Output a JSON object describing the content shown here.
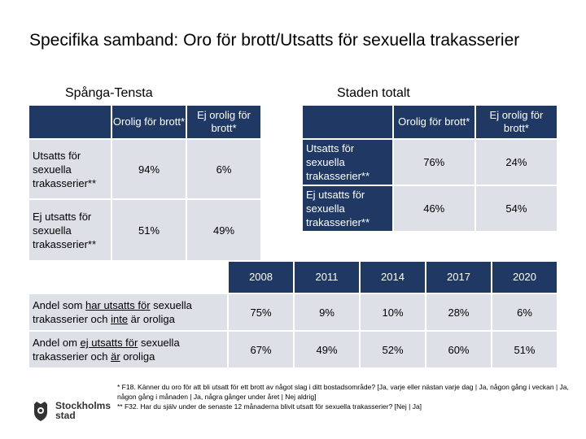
{
  "title": "Specifika samband: Oro för brott/Utsatts för sexuella trakasserier",
  "spanga": {
    "region": "Spånga-Tensta",
    "col1": "Orolig för brott*",
    "col2": "Ej orolig för brott*",
    "row1": "Utsatts för sexuella trakasserier**",
    "row2": "Ej utsatts för sexuella trakasserier**",
    "r1c1": "94%",
    "r1c2": "6%",
    "r2c1": "51%",
    "r2c2": "49%"
  },
  "staden": {
    "region": "Staden totalt",
    "col1": "Orolig för brott*",
    "col2": "Ej orolig för brott*",
    "row1": "Utsatts för sexuella trakasserier**",
    "row2": "Ej utsatts för sexuella trakasserier**",
    "r1c1": "76%",
    "r1c2": "24%",
    "r2c1": "46%",
    "r2c2": "54%"
  },
  "trend": {
    "years": [
      "2008",
      "2011",
      "2014",
      "2017",
      "2020"
    ],
    "row1_parts": [
      "Andel som ",
      "har utsatts för",
      " sexuella trakasserier och ",
      "inte",
      " är oroliga"
    ],
    "row1_values": [
      "75%",
      "9%",
      "10%",
      "28%",
      "6%"
    ],
    "row2_parts": [
      "Andel om ",
      "ej utsatts för",
      " sexuella trakasserier och ",
      "är",
      " oroliga"
    ],
    "row2_values": [
      "67%",
      "49%",
      "52%",
      "60%",
      "51%"
    ]
  },
  "footnote": {
    "line1": "* F18. Känner du oro för att bli utsatt för ett brott av något slag i ditt bostadsområde? [Ja, varje eller nästan varje dag | Ja, någon gång i veckan | Ja, någon gång i månaden | Ja, några gånger under året | Nej aldrig]",
    "line2": "** F32. Har du själv under de senaste 12 månaderna blivit utsatt för sexuella trakasserier? [Nej | Ja]"
  },
  "logo": {
    "line1": "Stockholms",
    "line2": "stad",
    "icon": "crown-shield-icon"
  }
}
